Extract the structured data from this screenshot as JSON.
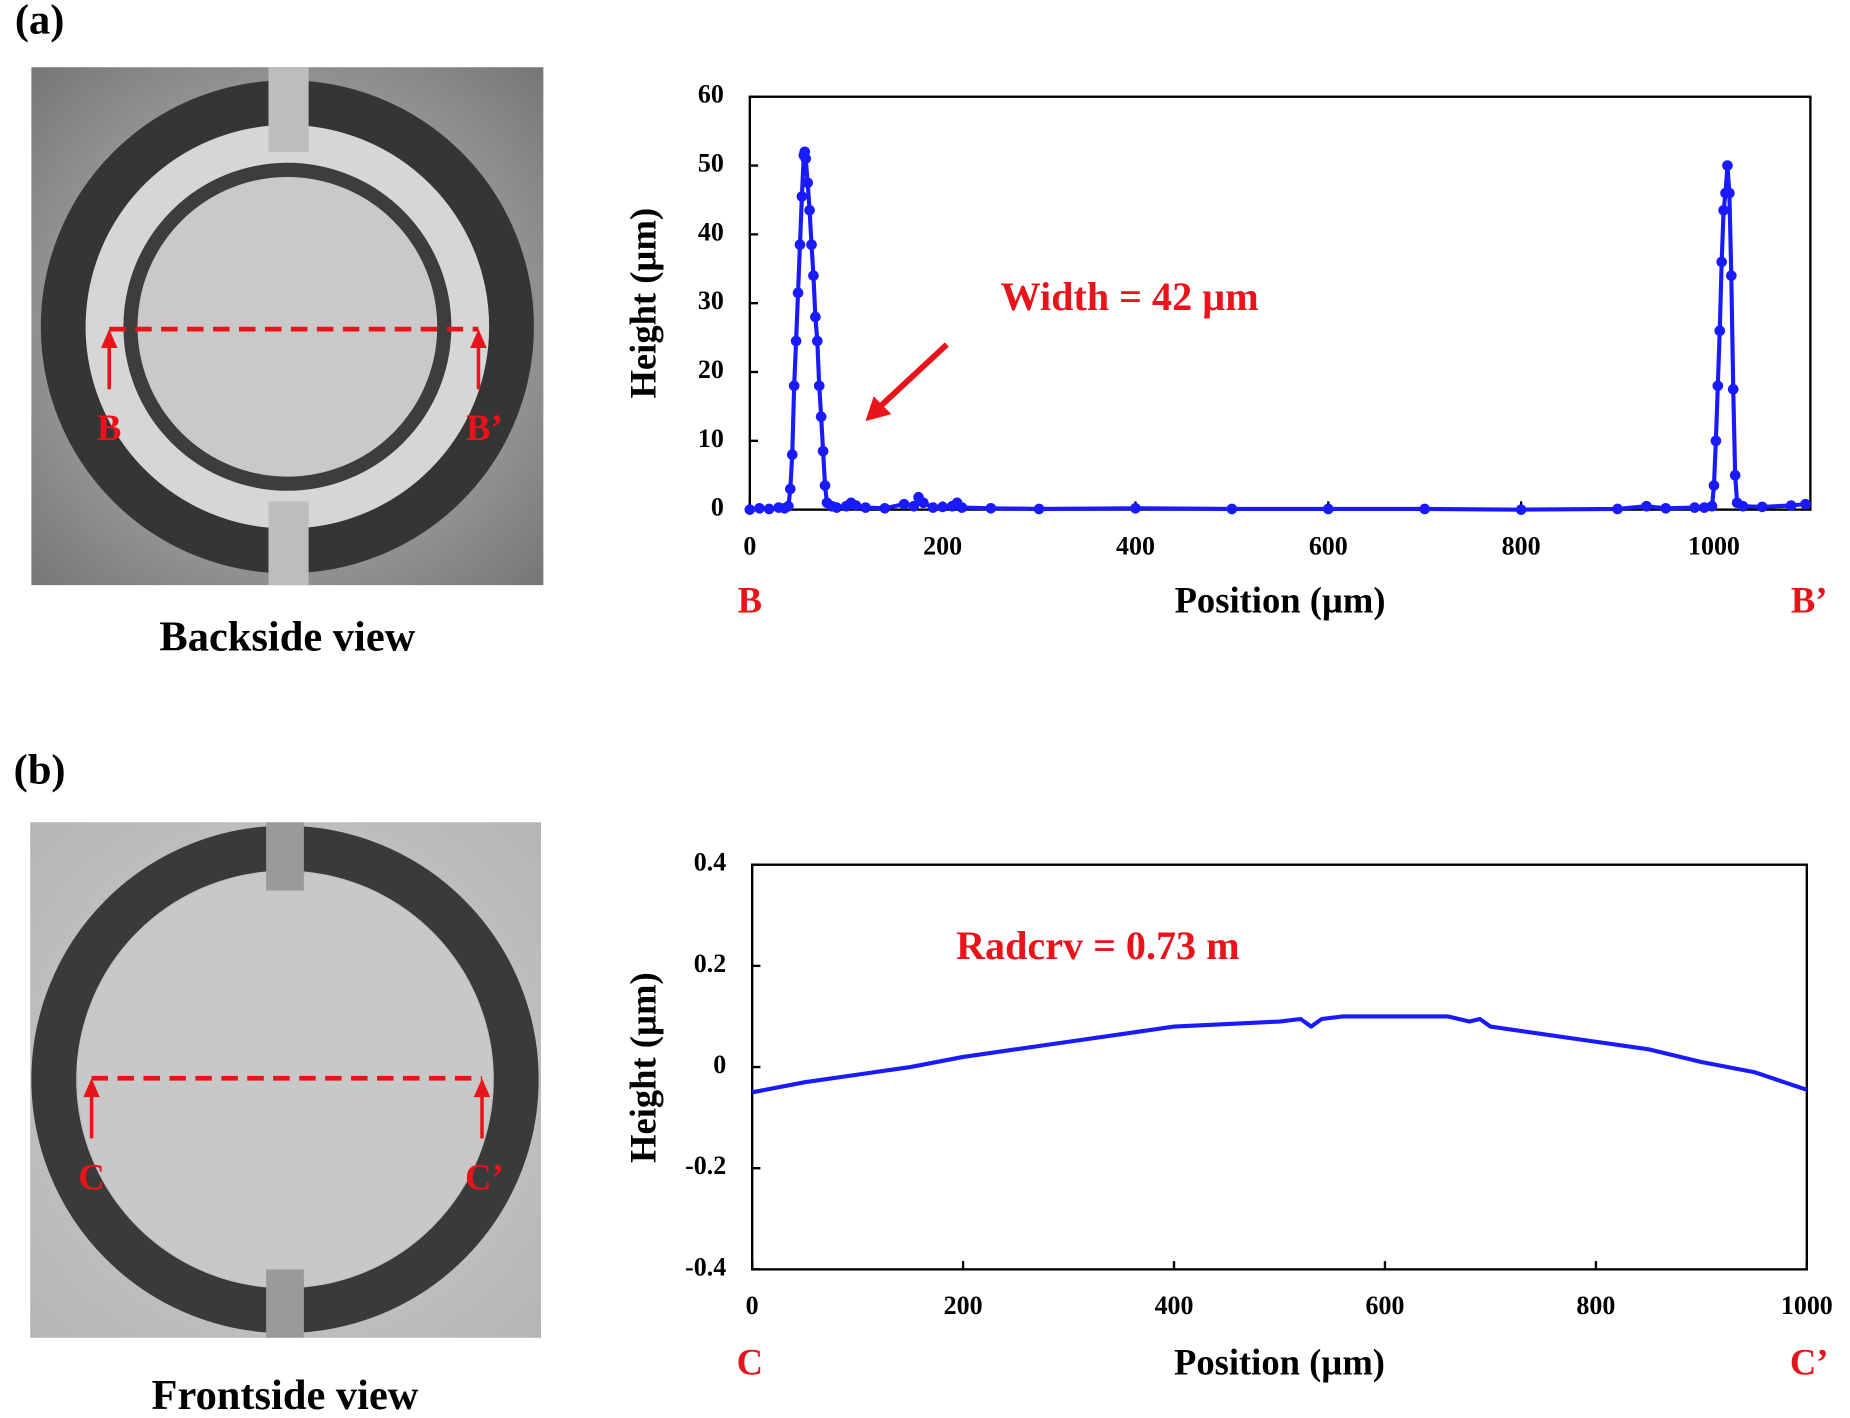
{
  "panels": [
    {
      "label": "(a)",
      "caption": "Backside view",
      "start": "B",
      "end": "B’"
    },
    {
      "label": "(b)",
      "caption": "Frontside view",
      "start": "C",
      "end": "C’"
    }
  ],
  "chart_data": [
    {
      "type": "line",
      "xlabel": "Position (µm)",
      "ylabel": "Height (µm)",
      "annotation": "Width = 42 µm",
      "color": "#1a1aff",
      "markers": true,
      "x": [
        0,
        10,
        20,
        30,
        36,
        40,
        42,
        44,
        46,
        48,
        50,
        52,
        54,
        56,
        57,
        58,
        60,
        62,
        64,
        66,
        68,
        70,
        72,
        74,
        76,
        78,
        80,
        85,
        90,
        100,
        105,
        110,
        120,
        140,
        160,
        170,
        175,
        180,
        190,
        200,
        210,
        215,
        220,
        250,
        300,
        400,
        500,
        600,
        700,
        800,
        900,
        930,
        950,
        980,
        990,
        998,
        1000,
        1002,
        1004,
        1006,
        1008,
        1010,
        1012,
        1014,
        1016,
        1018,
        1020,
        1022,
        1024,
        1030,
        1050,
        1080,
        1095
      ],
      "values": [
        0,
        0.2,
        0.1,
        0.3,
        0.2,
        0.5,
        3,
        8,
        18,
        24.5,
        31.5,
        38.5,
        45.5,
        51.5,
        52,
        51,
        47.5,
        43.5,
        38.5,
        34,
        28,
        24.5,
        18,
        13.5,
        8.5,
        3.5,
        1,
        0.5,
        0.3,
        0.5,
        1,
        0.6,
        0.3,
        0.2,
        0.8,
        0.5,
        1.8,
        1,
        0.3,
        0.4,
        0.5,
        1,
        0.3,
        0.2,
        0.1,
        0.2,
        0.1,
        0.1,
        0.1,
        0,
        0.1,
        0.5,
        0.2,
        0.3,
        0.3,
        0.5,
        3.5,
        10,
        18,
        26,
        36,
        43.5,
        46,
        50,
        46,
        34,
        17.5,
        5,
        1,
        0.5,
        0.4,
        0.6,
        0.8
      ],
      "xlim": [
        0,
        1100
      ],
      "xticks": [
        0,
        200,
        400,
        600,
        800,
        1000
      ],
      "ylim": [
        0,
        60
      ],
      "yticks": [
        0,
        10,
        20,
        30,
        40,
        50,
        60
      ]
    },
    {
      "type": "line",
      "xlabel": "Position (µm)",
      "ylabel": "Height (µm)",
      "annotation": "Radcrv = 0.73 m",
      "color": "#1a1aff",
      "markers": false,
      "x": [
        0,
        50,
        100,
        150,
        200,
        250,
        300,
        350,
        400,
        450,
        500,
        520,
        530,
        540,
        560,
        600,
        650,
        660,
        680,
        690,
        700,
        750,
        800,
        850,
        900,
        950,
        1000
      ],
      "values": [
        -0.05,
        -0.03,
        -0.015,
        0,
        0.02,
        0.035,
        0.05,
        0.065,
        0.08,
        0.085,
        0.09,
        0.095,
        0.08,
        0.095,
        0.1,
        0.1,
        0.1,
        0.1,
        0.09,
        0.095,
        0.08,
        0.065,
        0.05,
        0.035,
        0.01,
        -0.01,
        -0.045
      ],
      "xlim": [
        0,
        1000
      ],
      "xticks": [
        0,
        200,
        400,
        600,
        800,
        1000
      ],
      "ylim": [
        -0.4,
        0.4
      ],
      "yticks": [
        -0.4,
        -0.2,
        0,
        0.2,
        0.4
      ]
    }
  ]
}
